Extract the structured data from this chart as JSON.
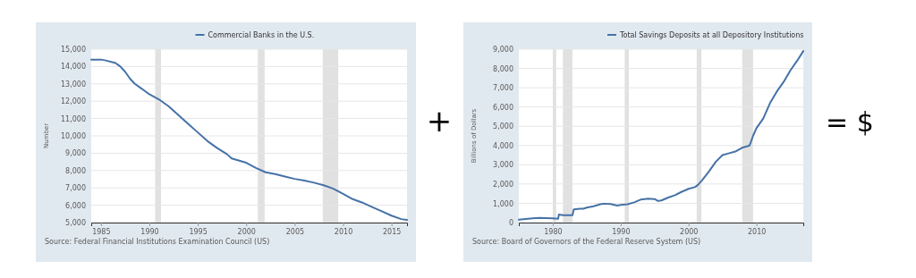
{
  "chart_data": [
    {
      "type": "line",
      "ylabel": "Number",
      "legend": "top",
      "grid": "y",
      "xlim": [
        1984,
        2016.6
      ],
      "xticks": [
        1985,
        1990,
        1995,
        2000,
        2005,
        2010,
        2015
      ],
      "ylim": [
        5000,
        15000
      ],
      "yticks": [
        {
          "value": 5000,
          "label": "5,000"
        },
        {
          "value": 6000,
          "label": "6,000"
        },
        {
          "value": 7000,
          "label": "7,000"
        },
        {
          "value": 8000,
          "label": "8,000"
        },
        {
          "value": 9000,
          "label": "9,000"
        },
        {
          "value": 10000,
          "label": "10,000"
        },
        {
          "value": 11000,
          "label": "11,000"
        },
        {
          "value": 12000,
          "label": "12,000"
        },
        {
          "value": 13000,
          "label": "13,000"
        },
        {
          "value": 14000,
          "label": "14,000"
        },
        {
          "value": 15000,
          "label": "15,000"
        }
      ],
      "bands": [
        {
          "axis": "x",
          "from": 1990.6,
          "to": 1991.2,
          "color": "#e1e1e1"
        },
        {
          "axis": "x",
          "from": 2001.2,
          "to": 2001.9,
          "color": "#e1e1e1"
        },
        {
          "axis": "x",
          "from": 2007.9,
          "to": 2009.5,
          "color": "#e1e1e1"
        }
      ],
      "annotations": [
        "Source: Federal Financial Institutions Examination Council (US)",
        "+"
      ],
      "x": [
        1984,
        1985,
        1985.5,
        1986.5,
        1987,
        1987.5,
        1988,
        1988.5,
        1989,
        1989.5,
        1990,
        1991,
        1992,
        1993,
        1994,
        1995,
        1996,
        1997,
        1998,
        1998.5,
        2000,
        2001,
        2002,
        2003,
        2004,
        2005,
        2006,
        2007,
        2008,
        2009,
        2010,
        2011,
        2012,
        2013,
        2014,
        2015,
        2016,
        2016.6
      ],
      "series": [
        {
          "name": "Commercial Banks in the U.S.",
          "color": "#4572a7",
          "values": [
            14400,
            14400,
            14350,
            14200,
            14000,
            13700,
            13300,
            13000,
            12800,
            12600,
            12400,
            12100,
            11700,
            11200,
            10700,
            10200,
            9700,
            9300,
            8950,
            8700,
            8450,
            8150,
            7900,
            7800,
            7650,
            7520,
            7420,
            7300,
            7150,
            6950,
            6650,
            6350,
            6150,
            5900,
            5650,
            5400,
            5200,
            5150
          ]
        }
      ]
    },
    {
      "type": "line",
      "ylabel": "Billions of Dollars",
      "legend": "top",
      "grid": "y",
      "xlim": [
        1975,
        2016.9
      ],
      "xticks": [
        1980,
        1990,
        2000,
        2010
      ],
      "ylim": [
        0,
        9000
      ],
      "yticks": [
        0,
        {
          "value": 1000,
          "label": "1,000"
        },
        {
          "value": 2000,
          "label": "2,000"
        },
        {
          "value": 3000,
          "label": "3,000"
        },
        {
          "value": 4000,
          "label": "4,000"
        },
        {
          "value": 5000,
          "label": "5,000"
        },
        {
          "value": 6000,
          "label": "6,000"
        },
        {
          "value": 7000,
          "label": "7,000"
        },
        {
          "value": 8000,
          "label": "8,000"
        },
        {
          "value": 9000,
          "label": "9,000"
        }
      ],
      "bands": [
        {
          "axis": "x",
          "from": 1980.0,
          "to": 1980.5,
          "color": "#e1e1e1"
        },
        {
          "axis": "x",
          "from": 1981.5,
          "to": 1982.9,
          "color": "#e1e1e1"
        },
        {
          "axis": "x",
          "from": 1990.6,
          "to": 1991.2,
          "color": "#e1e1e1"
        },
        {
          "axis": "x",
          "from": 2001.2,
          "to": 2001.9,
          "color": "#e1e1e1"
        },
        {
          "axis": "x",
          "from": 2007.9,
          "to": 2009.5,
          "color": "#e1e1e1"
        }
      ],
      "annotations": [
        "Source: Board of Governors of the Federal Reserve System (US)",
        "= $"
      ],
      "x": [
        1975,
        1977,
        1978,
        1980,
        1980.8,
        1980.9,
        1981.5,
        1982.9,
        1983.1,
        1984,
        1984.5,
        1985,
        1986,
        1987,
        1987.5,
        1988.5,
        1989.5,
        1990,
        1991,
        1992,
        1993,
        1994,
        1995,
        1995.5,
        1996,
        1997,
        1998,
        1999,
        2000,
        2001,
        2001.5,
        2002,
        2003,
        2004,
        2005,
        2006,
        2007,
        2008,
        2009,
        2009.5,
        2010,
        2011,
        2012,
        2013,
        2014,
        2015,
        2016,
        2016.9
      ],
      "series": [
        {
          "name": "Total Savings Deposits at all Depository Institutions",
          "color": "#4572a7",
          "values": [
            150,
            220,
            240,
            220,
            200,
            420,
            380,
            380,
            680,
            720,
            720,
            780,
            850,
            950,
            980,
            960,
            880,
            920,
            950,
            1050,
            1200,
            1240,
            1220,
            1120,
            1150,
            1300,
            1420,
            1600,
            1750,
            1850,
            2000,
            2200,
            2650,
            3150,
            3500,
            3600,
            3700,
            3900,
            4000,
            4500,
            4900,
            5400,
            6200,
            6800,
            7300,
            7900,
            8400,
            8900
          ]
        }
      ]
    }
  ]
}
